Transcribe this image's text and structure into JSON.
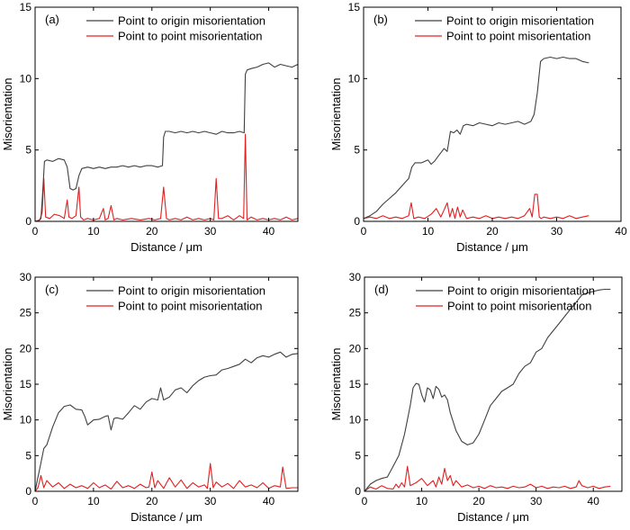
{
  "chart_data": [
    {
      "panel": "(a)",
      "type": "line",
      "xlabel": "Distance / μm",
      "ylabel": "Misorientation",
      "xlim": [
        0,
        45
      ],
      "ylim": [
        0,
        15
      ],
      "xticks": [
        0,
        10,
        20,
        30,
        40
      ],
      "yticks": [
        0,
        5,
        10,
        15
      ],
      "legend_position": "top-center",
      "series": [
        {
          "name": "Point to origin misorientation",
          "color": "#404040",
          "x": [
            0,
            0.5,
            1,
            1.3,
            1.6,
            2,
            3,
            4,
            5,
            5.5,
            6,
            6.5,
            7,
            7.5,
            8,
            9,
            10,
            11,
            12,
            13,
            14,
            15,
            16,
            17,
            18,
            19,
            20,
            21,
            21.8,
            22,
            22.3,
            23,
            24,
            25,
            26,
            27,
            28,
            29,
            30,
            31,
            32,
            33,
            34,
            35,
            35.8,
            36,
            36.3,
            37,
            38,
            39,
            40,
            41,
            42,
            43,
            44,
            45
          ],
          "y": [
            0,
            0,
            0.2,
            2,
            4.2,
            4.3,
            4.2,
            4.4,
            4.3,
            3.8,
            2.3,
            2.2,
            2.3,
            3.2,
            3.7,
            3.8,
            3.7,
            3.8,
            3.7,
            3.8,
            3.8,
            3.9,
            3.8,
            3.9,
            3.8,
            3.9,
            3.9,
            3.8,
            3.9,
            5.9,
            6.3,
            6.3,
            6.2,
            6.3,
            6.2,
            6.3,
            6.2,
            6.3,
            6.2,
            6.1,
            6.3,
            6.2,
            6.2,
            6.3,
            6.2,
            10.3,
            10.6,
            10.7,
            10.8,
            11,
            11.1,
            10.8,
            11,
            10.9,
            10.8,
            11
          ]
        },
        {
          "name": "Point to point misorientation",
          "color": "#e02020",
          "x": [
            0,
            0.8,
            1.2,
            1.5,
            1.8,
            2.5,
            3.3,
            4.2,
            5,
            5.5,
            5.8,
            6.3,
            7,
            7.5,
            7.8,
            8.3,
            9,
            10,
            11,
            11.7,
            12,
            12.5,
            13,
            13.5,
            14,
            15,
            16.5,
            18,
            19.5,
            20.5,
            21.5,
            22,
            22.5,
            23,
            24,
            25,
            26,
            27,
            28,
            29,
            30,
            30.6,
            31,
            31.4,
            32,
            33,
            34,
            35,
            35.7,
            36,
            36.3,
            37,
            38,
            39,
            40,
            41,
            42,
            43,
            44,
            45
          ],
          "y": [
            0,
            0.1,
            0.6,
            3,
            0.3,
            0.2,
            0.5,
            0.4,
            0.2,
            1.5,
            0.3,
            0.2,
            0.4,
            2.4,
            0.3,
            0.1,
            0.2,
            0.1,
            0.2,
            0.9,
            0.1,
            0.2,
            1.1,
            0.1,
            0.2,
            0.1,
            0.2,
            0.1,
            0.2,
            0.1,
            0.2,
            2.4,
            0.2,
            0.1,
            0.2,
            0.1,
            0.3,
            0.1,
            0.2,
            0.1,
            0.2,
            0.1,
            3,
            0.2,
            0.2,
            0.4,
            0.1,
            0.4,
            0.2,
            6.1,
            0.1,
            0.3,
            0.1,
            0.2,
            0.1,
            0.2,
            0.1,
            0.3,
            0.1,
            0.2
          ]
        }
      ]
    },
    {
      "panel": "(b)",
      "type": "line",
      "xlabel": "Distance / μm",
      "ylabel": "Misorientation",
      "xlim": [
        0,
        40
      ],
      "ylim": [
        0,
        15
      ],
      "xticks": [
        0,
        10,
        20,
        30,
        40
      ],
      "yticks": [
        0,
        5,
        10,
        15
      ],
      "legend_position": "top-center",
      "series": [
        {
          "name": "Point to origin misorientation",
          "color": "#404040",
          "x": [
            0,
            1,
            2,
            3,
            4,
            5,
            6,
            7,
            7.5,
            8,
            9,
            10,
            10.5,
            11,
            11.5,
            12,
            12.5,
            13,
            13.5,
            14,
            14.5,
            15,
            15.5,
            16,
            17,
            18,
            19,
            20,
            21,
            22,
            23,
            24,
            25,
            26,
            26.5,
            27,
            27.5,
            28,
            29,
            30,
            31,
            32,
            33,
            34,
            35
          ],
          "y": [
            0.2,
            0.4,
            0.7,
            1.2,
            1.6,
            2,
            2.5,
            3,
            3.8,
            4.1,
            4.1,
            4.3,
            4,
            4.2,
            4.5,
            4.8,
            5.1,
            4.9,
            6.3,
            6.2,
            6.4,
            6.1,
            6.7,
            6.8,
            6.7,
            6.9,
            6.8,
            6.7,
            6.9,
            6.8,
            6.9,
            7,
            6.8,
            7,
            7.5,
            9,
            11.2,
            11.4,
            11.5,
            11.4,
            11.5,
            11.4,
            11.4,
            11.2,
            11.1
          ]
        },
        {
          "name": "Point to point misorientation",
          "color": "#e02020",
          "x": [
            0,
            1,
            2,
            3,
            4,
            5,
            6,
            7,
            7.4,
            7.8,
            8.5,
            9.5,
            10.5,
            11.3,
            12,
            12.5,
            13,
            13.4,
            13.8,
            14.2,
            14.6,
            15,
            15.4,
            16,
            17,
            18,
            19,
            20,
            21,
            22,
            23,
            24,
            25,
            25.8,
            26.2,
            26.6,
            27,
            27.3,
            27.6,
            28,
            29,
            30,
            31,
            32,
            33,
            34,
            35
          ],
          "y": [
            0.2,
            0.3,
            0.2,
            0.4,
            0.2,
            0.3,
            0.2,
            0.4,
            1.3,
            0.2,
            0.3,
            0.2,
            0.5,
            0.9,
            0.3,
            0.8,
            1.3,
            0.3,
            0.9,
            0.2,
            1,
            0.3,
            0.8,
            0.2,
            0.3,
            0.2,
            0.4,
            0.2,
            0.3,
            0.2,
            0.3,
            0.2,
            0.4,
            0.9,
            0.3,
            1.9,
            1.9,
            0.3,
            0.2,
            0.3,
            0.2,
            0.3,
            0.2,
            0.4,
            0.2,
            0.3,
            0.4
          ]
        }
      ]
    },
    {
      "panel": "(c)",
      "type": "line",
      "xlabel": "Distance / μm",
      "ylabel": "Misorientation",
      "xlim": [
        0,
        45
      ],
      "ylim": [
        0,
        30
      ],
      "xticks": [
        0,
        10,
        20,
        30,
        40
      ],
      "yticks": [
        0,
        5,
        10,
        15,
        20,
        25,
        30
      ],
      "legend_position": "top-center",
      "series": [
        {
          "name": "Point to origin misorientation",
          "color": "#404040",
          "x": [
            0,
            0.5,
            1,
            1.5,
            2,
            3,
            4,
            5,
            6,
            7,
            8,
            8.5,
            9,
            10,
            11,
            12,
            12.5,
            13,
            13.5,
            14,
            15,
            16,
            17,
            18,
            19,
            20,
            21,
            21.5,
            22,
            23,
            24,
            25,
            26,
            27,
            28,
            29,
            30,
            31,
            32,
            33,
            34,
            35,
            36,
            37,
            38,
            39,
            40,
            41,
            42,
            43,
            44,
            45
          ],
          "y": [
            0,
            2,
            4,
            6,
            6.5,
            9,
            11,
            11.9,
            12.1,
            11.5,
            11.4,
            10.5,
            9.3,
            10,
            10.1,
            10.5,
            10.6,
            8.6,
            10.2,
            10.3,
            10.1,
            11,
            12,
            11.5,
            12.5,
            13,
            12.8,
            14.5,
            12.8,
            13.2,
            14.2,
            14.5,
            13.8,
            14.8,
            15.5,
            16,
            16.2,
            16.3,
            17,
            17.2,
            17.5,
            17.8,
            18.5,
            18,
            18.7,
            19,
            18.8,
            19.2,
            19.5,
            18.8,
            19.2,
            19.3
          ]
        },
        {
          "name": "Point to point misorientation",
          "color": "#e02020",
          "x": [
            0,
            0.5,
            1,
            1.5,
            2,
            3,
            4,
            5,
            6,
            7,
            8,
            9,
            10,
            11,
            12,
            13,
            14,
            15,
            16,
            17,
            18,
            19,
            19.5,
            20,
            20.5,
            21,
            22,
            23,
            24,
            25,
            26,
            27,
            28,
            29,
            29.5,
            30,
            30.5,
            31,
            32,
            33,
            34,
            35,
            36,
            37,
            38,
            39,
            40,
            41,
            42,
            42.4,
            43,
            44,
            45
          ],
          "y": [
            0,
            0.5,
            2.2,
            0.5,
            1.5,
            0.6,
            1.2,
            0.4,
            1,
            0.5,
            0.8,
            0.4,
            1.2,
            0.5,
            0.9,
            0.3,
            1.4,
            0.5,
            0.8,
            0.4,
            1,
            0.5,
            0.6,
            2.7,
            0.5,
            1.5,
            0.4,
            1.9,
            0.6,
            1.6,
            0.4,
            1.2,
            0.6,
            0.9,
            0.4,
            3.9,
            0.5,
            1.3,
            0.6,
            1.1,
            0.4,
            1.5,
            0.6,
            0.9,
            0.5,
            1.2,
            0.4,
            0.8,
            0.6,
            3.4,
            0.4,
            0.5,
            0.5
          ]
        }
      ]
    },
    {
      "panel": "(d)",
      "type": "line",
      "xlabel": "Distance / μm",
      "ylabel": "Misorientation",
      "xlim": [
        0,
        45
      ],
      "ylim": [
        0,
        30
      ],
      "xticks": [
        0,
        10,
        20,
        30,
        40
      ],
      "yticks": [
        0,
        5,
        10,
        15,
        20,
        25,
        30
      ],
      "legend_position": "top-center",
      "series": [
        {
          "name": "Point to origin misorientation",
          "color": "#404040",
          "x": [
            0,
            1,
            2,
            3,
            4,
            5,
            6,
            7,
            8,
            8.5,
            9,
            9.5,
            10,
            10.5,
            11,
            11.5,
            12,
            12.5,
            13,
            13.5,
            14,
            14.5,
            15,
            16,
            17,
            18,
            19,
            20,
            21,
            22,
            23,
            24,
            25,
            26,
            27,
            28,
            29,
            30,
            31,
            32,
            33,
            34,
            35,
            36,
            37,
            38,
            39,
            40,
            41,
            42,
            43
          ],
          "y": [
            0,
            1,
            1.5,
            1.8,
            2,
            3.5,
            5,
            8,
            12,
            14.5,
            15.1,
            15,
            13.5,
            12.5,
            14.5,
            14.2,
            13,
            14.7,
            14.3,
            13.2,
            13.5,
            12.8,
            11,
            8.5,
            7,
            6.5,
            6.8,
            8,
            10,
            12,
            13,
            14,
            14.5,
            15,
            16.5,
            17.5,
            18,
            19.5,
            20,
            21.5,
            22.5,
            23.5,
            24.5,
            25.5,
            26.5,
            27.5,
            27.8,
            28,
            28.2,
            28.3,
            28.3
          ]
        },
        {
          "name": "Point to point misorientation",
          "color": "#e02020",
          "x": [
            0,
            1,
            2,
            3,
            4,
            5,
            5.5,
            6,
            6.5,
            7,
            7.5,
            8,
            9,
            10,
            11,
            12,
            12.5,
            13,
            13.5,
            14,
            14.5,
            15,
            15.5,
            16,
            17,
            18,
            19,
            20,
            21,
            22,
            23,
            24,
            25,
            26,
            27,
            28,
            29,
            30,
            31,
            32,
            33,
            34,
            35,
            36,
            37,
            37.5,
            38,
            39,
            40,
            41,
            42,
            43
          ],
          "y": [
            0,
            0.6,
            0.3,
            0.8,
            0.4,
            0.3,
            1,
            0.5,
            1.2,
            0.6,
            3.5,
            0.8,
            1.2,
            1.8,
            0.8,
            1.5,
            0.6,
            2,
            1,
            3.2,
            1.5,
            2.2,
            0.8,
            1.5,
            0.6,
            0.9,
            0.5,
            0.7,
            0.4,
            0.8,
            0.5,
            0.6,
            0.4,
            0.7,
            0.5,
            0.6,
            1,
            0.5,
            0.7,
            0.4,
            0.6,
            0.5,
            0.7,
            0.4,
            0.6,
            1.5,
            0.8,
            0.5,
            0.7,
            0.4,
            0.6,
            0.7
          ]
        }
      ]
    }
  ]
}
